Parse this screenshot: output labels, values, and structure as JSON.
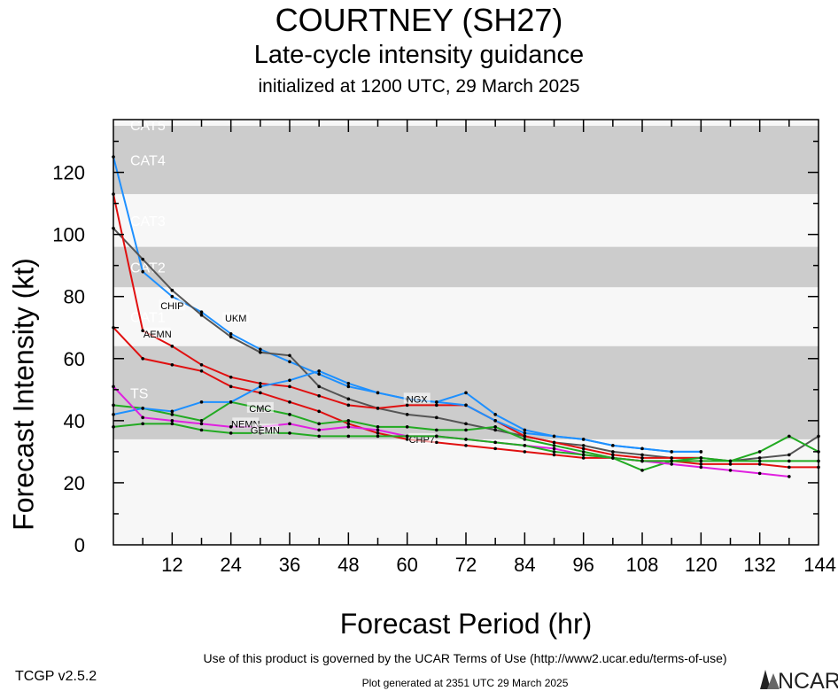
{
  "header": {
    "title": "COURTNEY (SH27)",
    "subtitle": "Late-cycle intensity guidance",
    "initialized": "initialized at 1200 UTC, 29 March 2025"
  },
  "footer": {
    "terms": "Use of this product is governed by the UCAR Terms of Use (http://www2.ucar.edu/terms-of-use)",
    "version": "TCGP v2.5.2",
    "generated": "Plot generated at 2351 UTC   29 March 2025",
    "logo_text": "NCAR"
  },
  "chart_data": {
    "type": "line",
    "title": "COURTNEY (SH27)",
    "xlabel": "Forecast Period (hr)",
    "ylabel": "Forecast Intensity (kt)",
    "xlim": [
      0,
      144
    ],
    "ylim": [
      0,
      137
    ],
    "xticks": [
      12,
      24,
      36,
      48,
      60,
      72,
      84,
      96,
      108,
      120,
      132,
      144
    ],
    "yticks": [
      0,
      20,
      40,
      60,
      80,
      100,
      120
    ],
    "grid": false,
    "bands": [
      {
        "label": "TS",
        "min": 34,
        "max": 64,
        "shaded": true
      },
      {
        "label": "CAT1",
        "min": 64,
        "max": 83,
        "shaded": false
      },
      {
        "label": "CAT2",
        "min": 83,
        "max": 96,
        "shaded": true
      },
      {
        "label": "CAT3",
        "min": 96,
        "max": 113,
        "shaded": false
      },
      {
        "label": "CAT4",
        "min": 113,
        "max": 135,
        "shaded": true
      },
      {
        "label": "CAT5",
        "min": 135,
        "max": 137,
        "shaded": false
      }
    ],
    "series": [
      {
        "name": "CHIP",
        "color": "#1e90ff",
        "label_at": [
          12,
          77
        ],
        "x": [
          0,
          6,
          12,
          18,
          24,
          30,
          36,
          42,
          48,
          54,
          60,
          66,
          72,
          78,
          84,
          90,
          96,
          102,
          108,
          114,
          120
        ],
        "y": [
          125,
          88,
          80,
          75,
          68,
          63,
          59,
          55,
          51,
          49,
          47,
          46,
          49,
          42,
          37,
          35,
          34,
          32,
          31,
          30,
          30
        ]
      },
      {
        "name": "UKM",
        "color": "#555555",
        "label_at": [
          25,
          73
        ],
        "x": [
          0,
          6,
          12,
          18,
          24,
          30,
          36,
          42,
          48,
          54,
          60,
          66,
          72,
          78,
          84,
          90,
          96,
          102,
          108,
          114,
          120,
          126,
          132,
          138,
          144
        ],
        "y": [
          102,
          92,
          82,
          74,
          67,
          62,
          61,
          51,
          47,
          44,
          42,
          41,
          39,
          37,
          35,
          33,
          32,
          30,
          29,
          28,
          28,
          27,
          28,
          29,
          35
        ]
      },
      {
        "name": "AEMN",
        "color": "#e01010",
        "label_at": [
          9,
          68
        ],
        "x": [
          0,
          6,
          12,
          18,
          24,
          30,
          36,
          42,
          48,
          54,
          60,
          66,
          72,
          78,
          84,
          90,
          96,
          102,
          108,
          114,
          120
        ],
        "y": [
          113,
          69,
          64,
          58,
          54,
          52,
          51,
          48,
          45,
          44,
          45,
          45,
          45,
          40,
          35,
          33,
          31,
          29,
          28,
          28,
          28
        ]
      },
      {
        "name": "CHP7",
        "color": "#e01010",
        "label_at": [
          63,
          34
        ],
        "x": [
          0,
          6,
          12,
          18,
          24,
          30,
          36,
          42,
          48,
          54,
          60,
          66,
          72,
          78,
          84,
          90,
          96,
          102,
          108,
          114,
          120,
          126,
          132,
          138,
          144
        ],
        "y": [
          70,
          60,
          58,
          56,
          51,
          49,
          46,
          43,
          39,
          36,
          34,
          33,
          32,
          31,
          30,
          29,
          28,
          28,
          27,
          27,
          26,
          26,
          26,
          25,
          25
        ]
      },
      {
        "name": "CMC",
        "color": "#22aa22",
        "label_at": [
          30,
          44
        ],
        "x": [
          0,
          6,
          12,
          18,
          24,
          30,
          36,
          42,
          48,
          54,
          60,
          66,
          72,
          78,
          84,
          90,
          96,
          102,
          108,
          114,
          120,
          126,
          132,
          138,
          144
        ],
        "y": [
          45,
          44,
          42,
          40,
          46,
          44,
          42,
          39,
          40,
          38,
          38,
          37,
          37,
          38,
          34,
          32,
          30,
          28,
          24,
          27,
          28,
          27,
          30,
          35,
          30
        ]
      },
      {
        "name": "NGX",
        "color": "#1e90ff",
        "label_at": [
          62,
          47
        ],
        "x": [
          0,
          6,
          12,
          18,
          24,
          30,
          36,
          42,
          48,
          54,
          60,
          66,
          72,
          78,
          84,
          90,
          96,
          102,
          108,
          114,
          120
        ],
        "y": [
          42,
          44,
          43,
          46,
          46,
          51,
          53,
          56,
          52,
          49,
          47,
          46,
          45,
          40,
          36,
          35,
          34,
          32,
          31,
          30,
          30
        ]
      },
      {
        "name": "NEMN",
        "color": "#e020e0",
        "label_at": [
          27,
          39
        ],
        "x": [
          0,
          6,
          12,
          18,
          24,
          30,
          36,
          42,
          48,
          54,
          60,
          66,
          72,
          78,
          84,
          90,
          96,
          102,
          108,
          114,
          120,
          126,
          132,
          138
        ],
        "y": [
          51,
          41,
          40,
          39,
          38,
          38,
          39,
          37,
          38,
          37,
          35,
          35,
          34,
          33,
          32,
          31,
          29,
          28,
          27,
          26,
          25,
          24,
          23,
          22
        ]
      },
      {
        "name": "GEMN",
        "color": "#22aa22",
        "label_at": [
          31,
          37
        ],
        "x": [
          0,
          6,
          12,
          18,
          24,
          30,
          36,
          42,
          48,
          54,
          60,
          66,
          72,
          78,
          84,
          90,
          96,
          102,
          108,
          114,
          120,
          126,
          132,
          138,
          144
        ],
        "y": [
          38,
          39,
          39,
          37,
          36,
          36,
          36,
          35,
          35,
          35,
          35,
          35,
          34,
          33,
          32,
          30,
          29,
          28,
          27,
          27,
          27,
          27,
          27,
          27,
          27
        ]
      }
    ]
  }
}
